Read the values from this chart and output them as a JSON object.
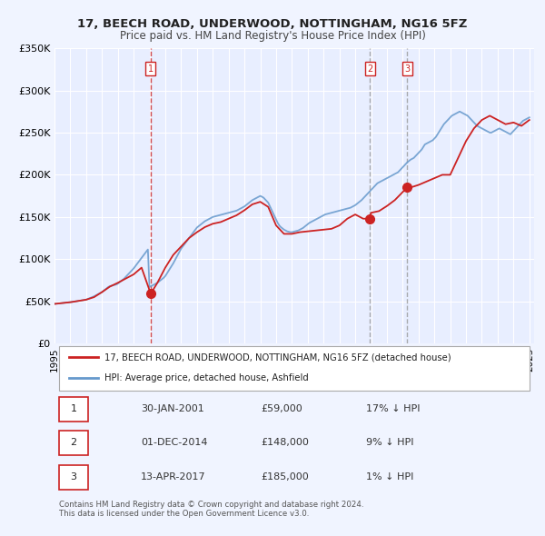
{
  "title": "17, BEECH ROAD, UNDERWOOD, NOTTINGHAM, NG16 5FZ",
  "subtitle": "Price paid vs. HM Land Registry's House Price Index (HPI)",
  "ylabel": "",
  "ylim": [
    0,
    350000
  ],
  "yticks": [
    0,
    50000,
    100000,
    150000,
    200000,
    250000,
    300000,
    350000
  ],
  "ytick_labels": [
    "£0",
    "£50K",
    "£100K",
    "£150K",
    "£200K",
    "£250K",
    "£300K",
    "£350K"
  ],
  "xlim_start": 1995.0,
  "xlim_end": 2025.3,
  "xticks": [
    1995,
    1996,
    1997,
    1998,
    1999,
    2000,
    2001,
    2002,
    2003,
    2004,
    2005,
    2006,
    2007,
    2008,
    2009,
    2010,
    2011,
    2012,
    2013,
    2014,
    2015,
    2016,
    2017,
    2018,
    2019,
    2020,
    2021,
    2022,
    2023,
    2024,
    2025
  ],
  "background_color": "#f0f4ff",
  "plot_bg": "#e8eeff",
  "grid_color": "#ffffff",
  "hpi_color": "#6699cc",
  "sale_color": "#cc2222",
  "sale_line_color": "#cc2222",
  "vline_color_dashed_red": "#cc2222",
  "vline_color_dashed_gray": "#888888",
  "marker_color": "#cc2222",
  "transaction_dates_decimal": [
    2001.08,
    2014.92,
    2017.28
  ],
  "transaction_prices": [
    59000,
    148000,
    185000
  ],
  "vline1_x": 2001.08,
  "vline2_x": 2014.92,
  "vline3_x": 2017.28,
  "legend_label_sale": "17, BEECH ROAD, UNDERWOOD, NOTTINGHAM, NG16 5FZ (detached house)",
  "legend_label_hpi": "HPI: Average price, detached house, Ashfield",
  "table_rows": [
    {
      "num": "1",
      "date": "30-JAN-2001",
      "price": "£59,000",
      "hpi": "17% ↓ HPI"
    },
    {
      "num": "2",
      "date": "01-DEC-2014",
      "price": "£148,000",
      "hpi": "9% ↓ HPI"
    },
    {
      "num": "3",
      "date": "13-APR-2017",
      "price": "£185,000",
      "hpi": "1% ↓ HPI"
    }
  ],
  "footer_text": "Contains HM Land Registry data © Crown copyright and database right 2024.\nThis data is licensed under the Open Government Licence v3.0.",
  "hpi_x": [
    1995.0,
    1995.1,
    1995.2,
    1995.3,
    1995.4,
    1995.5,
    1995.6,
    1995.7,
    1995.8,
    1995.9,
    1996.0,
    1996.1,
    1996.2,
    1996.3,
    1996.4,
    1996.5,
    1996.6,
    1996.7,
    1996.8,
    1996.9,
    1997.0,
    1997.1,
    1997.2,
    1997.3,
    1997.4,
    1997.5,
    1997.6,
    1997.7,
    1997.8,
    1997.9,
    1998.0,
    1998.1,
    1998.2,
    1998.3,
    1998.4,
    1998.5,
    1998.6,
    1998.7,
    1998.8,
    1998.9,
    1999.0,
    1999.1,
    1999.2,
    1999.3,
    1999.4,
    1999.5,
    1999.6,
    1999.7,
    1999.8,
    1999.9,
    2000.0,
    2000.1,
    2000.2,
    2000.3,
    2000.4,
    2000.5,
    2000.6,
    2000.7,
    2000.8,
    2000.9,
    2001.0,
    2001.1,
    2001.2,
    2001.3,
    2001.4,
    2001.5,
    2001.6,
    2001.7,
    2001.8,
    2001.9,
    2002.0,
    2002.1,
    2002.2,
    2002.3,
    2002.4,
    2002.5,
    2002.6,
    2002.7,
    2002.8,
    2002.9,
    2003.0,
    2003.1,
    2003.2,
    2003.3,
    2003.4,
    2003.5,
    2003.6,
    2003.7,
    2003.8,
    2003.9,
    2004.0,
    2004.1,
    2004.2,
    2004.3,
    2004.4,
    2004.5,
    2004.6,
    2004.7,
    2004.8,
    2004.9,
    2005.0,
    2005.1,
    2005.2,
    2005.3,
    2005.4,
    2005.5,
    2005.6,
    2005.7,
    2005.8,
    2005.9,
    2006.0,
    2006.1,
    2006.2,
    2006.3,
    2006.4,
    2006.5,
    2006.6,
    2006.7,
    2006.8,
    2006.9,
    2007.0,
    2007.1,
    2007.2,
    2007.3,
    2007.4,
    2007.5,
    2007.6,
    2007.7,
    2007.8,
    2007.9,
    2008.0,
    2008.1,
    2008.2,
    2008.3,
    2008.4,
    2008.5,
    2008.6,
    2008.7,
    2008.8,
    2008.9,
    2009.0,
    2009.1,
    2009.2,
    2009.3,
    2009.4,
    2009.5,
    2009.6,
    2009.7,
    2009.8,
    2009.9,
    2010.0,
    2010.1,
    2010.2,
    2010.3,
    2010.4,
    2010.5,
    2010.6,
    2010.7,
    2010.8,
    2010.9,
    2011.0,
    2011.1,
    2011.2,
    2011.3,
    2011.4,
    2011.5,
    2011.6,
    2011.7,
    2011.8,
    2011.9,
    2012.0,
    2012.1,
    2012.2,
    2012.3,
    2012.4,
    2012.5,
    2012.6,
    2012.7,
    2012.8,
    2012.9,
    2013.0,
    2013.1,
    2013.2,
    2013.3,
    2013.4,
    2013.5,
    2013.6,
    2013.7,
    2013.8,
    2013.9,
    2014.0,
    2014.1,
    2014.2,
    2014.3,
    2014.4,
    2014.5,
    2014.6,
    2014.7,
    2014.8,
    2014.9,
    2015.0,
    2015.1,
    2015.2,
    2015.3,
    2015.4,
    2015.5,
    2015.6,
    2015.7,
    2015.8,
    2015.9,
    2016.0,
    2016.1,
    2016.2,
    2016.3,
    2016.4,
    2016.5,
    2016.6,
    2016.7,
    2016.8,
    2016.9,
    2017.0,
    2017.1,
    2017.2,
    2017.3,
    2017.4,
    2017.5,
    2017.6,
    2017.7,
    2017.8,
    2017.9,
    2018.0,
    2018.1,
    2018.2,
    2018.3,
    2018.4,
    2018.5,
    2018.6,
    2018.7,
    2018.8,
    2018.9,
    2019.0,
    2019.1,
    2019.2,
    2019.3,
    2019.4,
    2019.5,
    2019.6,
    2019.7,
    2019.8,
    2019.9,
    2020.0,
    2020.1,
    2020.2,
    2020.3,
    2020.4,
    2020.5,
    2020.6,
    2020.7,
    2020.8,
    2020.9,
    2021.0,
    2021.1,
    2021.2,
    2021.3,
    2021.4,
    2021.5,
    2021.6,
    2021.7,
    2021.8,
    2021.9,
    2022.0,
    2022.1,
    2022.2,
    2022.3,
    2022.4,
    2022.5,
    2022.6,
    2022.7,
    2022.8,
    2022.9,
    2023.0,
    2023.1,
    2023.2,
    2023.3,
    2023.4,
    2023.5,
    2023.6,
    2023.7,
    2023.8,
    2023.9,
    2024.0,
    2024.1,
    2024.2,
    2024.3,
    2024.4,
    2024.5,
    2024.6,
    2024.7,
    2024.8,
    2024.9,
    2025.0
  ],
  "hpi_y": [
    47000,
    47200,
    47400,
    47600,
    47800,
    48000,
    48200,
    48400,
    48600,
    48800,
    49000,
    49300,
    49600,
    49900,
    50200,
    50500,
    50800,
    51100,
    51400,
    51700,
    52000,
    52800,
    53600,
    54400,
    55200,
    56000,
    57000,
    58000,
    59000,
    60000,
    61000,
    62500,
    64000,
    65500,
    67000,
    68000,
    68500,
    69000,
    69500,
    70000,
    71000,
    72500,
    74000,
    75500,
    77000,
    79000,
    81000,
    83000,
    85000,
    87000,
    89000,
    91500,
    94000,
    96500,
    99000,
    101500,
    104000,
    106500,
    109000,
    111500,
    67000,
    68000,
    69000,
    70000,
    71000,
    72000,
    73500,
    75000,
    76500,
    78000,
    80000,
    83000,
    86000,
    89000,
    92000,
    95000,
    98500,
    102000,
    105500,
    109000,
    112500,
    115000,
    117500,
    120000,
    122500,
    125000,
    127500,
    130000,
    132500,
    135000,
    137500,
    139000,
    140500,
    142000,
    143500,
    145000,
    146000,
    147000,
    148000,
    149000,
    150000,
    150500,
    151000,
    151500,
    152000,
    152500,
    153000,
    153500,
    154000,
    154500,
    155000,
    155500,
    156000,
    156500,
    157000,
    157500,
    158500,
    159500,
    160500,
    161500,
    162500,
    164000,
    165500,
    167000,
    168500,
    170000,
    171000,
    172000,
    173000,
    174000,
    175000,
    174000,
    173000,
    171000,
    169000,
    167000,
    163000,
    159000,
    155000,
    151000,
    147000,
    143000,
    140000,
    138000,
    136500,
    135000,
    134000,
    133000,
    132500,
    132000,
    132000,
    132500,
    133000,
    133500,
    134000,
    135000,
    136000,
    137000,
    138500,
    140000,
    141500,
    143000,
    144000,
    145000,
    146000,
    147000,
    148000,
    149000,
    150000,
    151000,
    152000,
    153000,
    153500,
    154000,
    154500,
    155000,
    155500,
    156000,
    156500,
    157000,
    157500,
    158000,
    158500,
    159000,
    159500,
    160000,
    160500,
    161000,
    162000,
    163000,
    164000,
    165500,
    167000,
    168500,
    170000,
    172000,
    174000,
    176000,
    178000,
    180000,
    182000,
    184000,
    186000,
    188000,
    190000,
    191000,
    192000,
    193000,
    194000,
    195000,
    196000,
    197000,
    198000,
    199000,
    200000,
    201000,
    202000,
    203000,
    205000,
    207000,
    209000,
    211000,
    213000,
    215000,
    216500,
    218000,
    219000,
    220000,
    222000,
    224000,
    226000,
    228000,
    230000,
    233000,
    236000,
    237000,
    238000,
    239000,
    240000,
    241000,
    243000,
    245000,
    248000,
    251000,
    254000,
    257000,
    260000,
    262000,
    264000,
    266000,
    268000,
    270000,
    271000,
    272000,
    273000,
    274000,
    275000,
    274000,
    273000,
    272000,
    271000,
    270000,
    268000,
    266000,
    264000,
    262000,
    260000,
    258000,
    257000,
    256000,
    255000,
    254000,
    253000,
    252000,
    251000,
    250000,
    250000,
    251000,
    252000,
    253000,
    254000,
    255000,
    254000,
    253000,
    252000,
    251000,
    250000,
    249000,
    248000,
    250000,
    252000,
    254000,
    256000,
    258000,
    260000,
    262000,
    264000,
    265000,
    266000,
    267000,
    268000
  ],
  "sale_x": [
    1995.0,
    1995.5,
    1996.0,
    1996.5,
    1997.0,
    1997.5,
    1998.0,
    1998.5,
    1999.0,
    1999.5,
    2000.0,
    2000.5,
    2001.08,
    2001.5,
    2002.0,
    2002.5,
    2003.0,
    2003.5,
    2004.0,
    2004.5,
    2005.0,
    2005.5,
    2006.0,
    2006.5,
    2007.0,
    2007.5,
    2008.0,
    2008.5,
    2009.0,
    2009.5,
    2010.0,
    2010.5,
    2011.0,
    2011.5,
    2012.0,
    2012.5,
    2013.0,
    2013.5,
    2014.0,
    2014.5,
    2014.92,
    2015.0,
    2015.5,
    2016.0,
    2016.5,
    2017.28,
    2017.5,
    2018.0,
    2018.5,
    2019.0,
    2019.5,
    2020.0,
    2020.5,
    2021.0,
    2021.5,
    2022.0,
    2022.5,
    2023.0,
    2023.5,
    2024.0,
    2024.5,
    2025.0
  ],
  "sale_y": [
    47000,
    48000,
    49000,
    50500,
    52000,
    55000,
    61000,
    67500,
    72000,
    77000,
    82000,
    90000,
    59000,
    72000,
    90000,
    105000,
    115000,
    125000,
    132000,
    138000,
    142000,
    144000,
    148000,
    152000,
    158000,
    165000,
    168000,
    162000,
    140000,
    130000,
    130000,
    132000,
    133000,
    134000,
    135000,
    136000,
    140000,
    148000,
    153000,
    148000,
    148000,
    155000,
    157000,
    163000,
    170000,
    185000,
    185000,
    188000,
    192000,
    196000,
    200000,
    200000,
    220000,
    240000,
    255000,
    265000,
    270000,
    265000,
    260000,
    262000,
    258000,
    265000
  ]
}
